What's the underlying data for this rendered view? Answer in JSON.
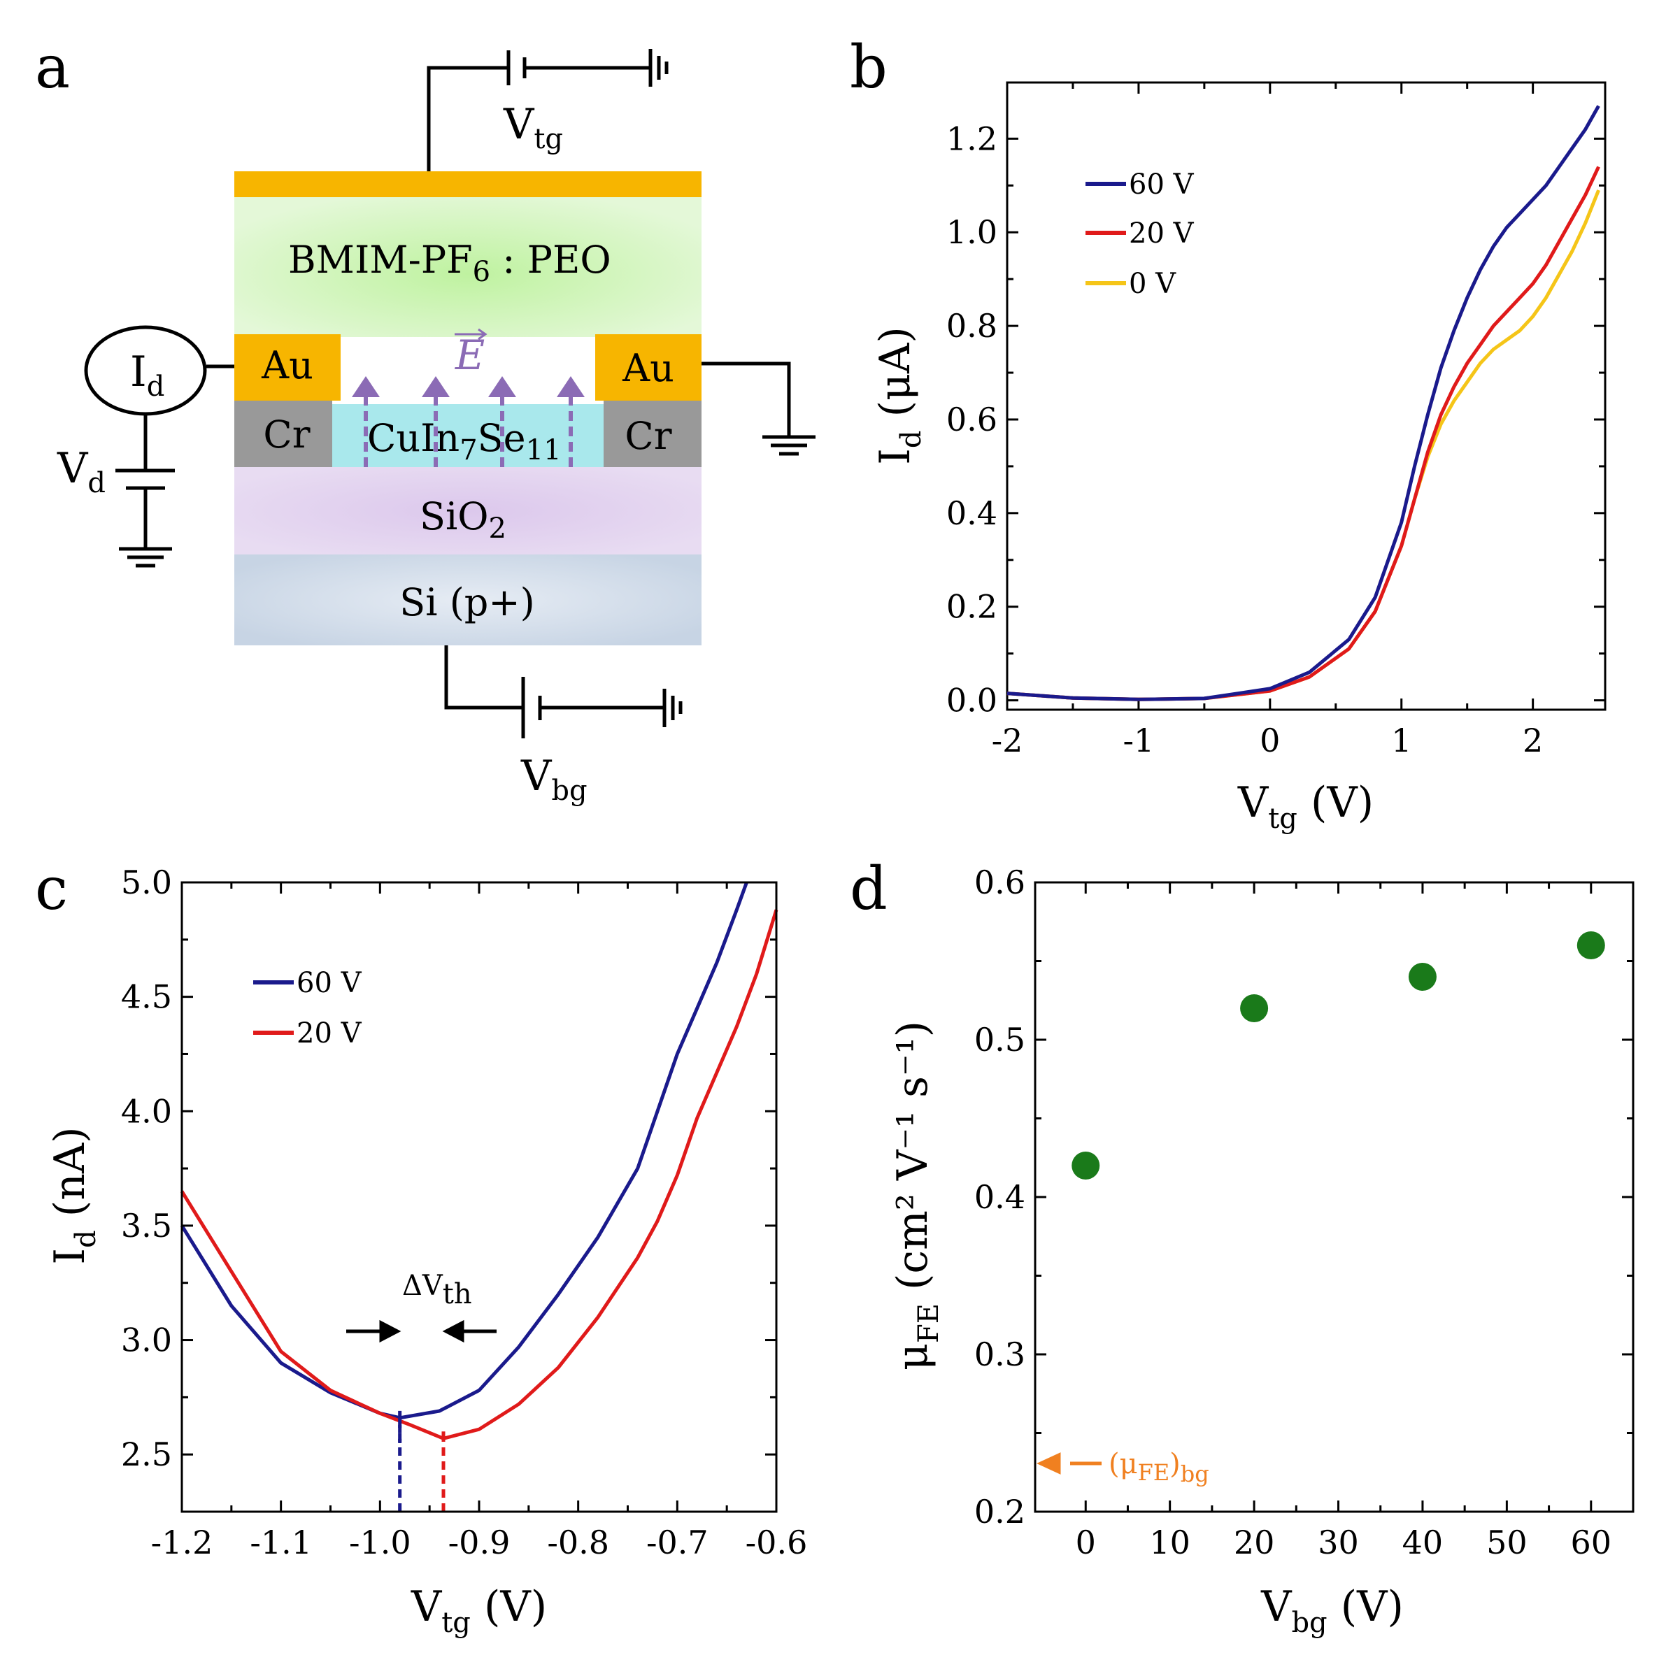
{
  "colors": {
    "blue": "#1a1a8c",
    "red": "#e01a1a",
    "yellow": "#f5c518",
    "green": "#1a7a1a",
    "orange": "#f08020",
    "gold": "#f7b500",
    "cr_gray": "#999999",
    "cuinse_cyan": "#a9e8ec",
    "arrow_purple": "#8b6bb5"
  },
  "panel_a": {
    "letter": "a",
    "vtg": {
      "main": "V",
      "sub": "tg"
    },
    "vbg": {
      "main": "V",
      "sub": "bg"
    },
    "vd": {
      "main": "V",
      "sub": "d"
    },
    "id": {
      "main": "I",
      "sub": "d"
    },
    "electrolyte": {
      "pre": "BMIM-PF",
      "sub": "6",
      "post": " : PEO"
    },
    "au_left": "Au",
    "au_right": "Au",
    "cr_left": "Cr",
    "cr_right": "Cr",
    "channel": {
      "p1": "CuIn",
      "s1": "7",
      "p2": "Se",
      "s2": "11"
    },
    "sio2": {
      "pre": "SiO",
      "sub": "2"
    },
    "si": "Si (p+)",
    "efield": "E"
  },
  "chart_data": [
    {
      "panel": "b",
      "type": "line",
      "xlabel": {
        "main": "V",
        "sub": "tg",
        "unit": " (V)"
      },
      "ylabel": {
        "main": "I",
        "sub": "d",
        "unit": " (μA)"
      },
      "xlim": [
        -2.0,
        2.55
      ],
      "ylim": [
        -0.02,
        1.32
      ],
      "xticks": [
        -2,
        -1,
        0,
        1,
        2
      ],
      "xtick_labels": [
        "-2",
        "-1",
        "0",
        "1",
        "2"
      ],
      "yticks": [
        0.0,
        0.2,
        0.4,
        0.6,
        0.8,
        1.0,
        1.2
      ],
      "ytick_labels": [
        "0.0",
        "0.2",
        "0.4",
        "0.6",
        "0.8",
        "1.0",
        "1.2"
      ],
      "legend": [
        "60 V",
        "20 V",
        "0 V"
      ],
      "series": [
        {
          "name": "0 V",
          "color": "yellow",
          "x": [
            -2.0,
            -1.5,
            -1.0,
            -0.5,
            0.0,
            0.3,
            0.6,
            0.8,
            1.0,
            1.1,
            1.2,
            1.3,
            1.4,
            1.5,
            1.6,
            1.7,
            1.8,
            1.9,
            2.0,
            2.1,
            2.2,
            2.3,
            2.4,
            2.5
          ],
          "y": [
            0.015,
            0.005,
            0.002,
            0.004,
            0.02,
            0.05,
            0.11,
            0.19,
            0.33,
            0.43,
            0.52,
            0.59,
            0.64,
            0.68,
            0.72,
            0.75,
            0.77,
            0.79,
            0.82,
            0.86,
            0.91,
            0.96,
            1.02,
            1.09
          ]
        },
        {
          "name": "20 V",
          "color": "red",
          "x": [
            -2.0,
            -1.5,
            -1.0,
            -0.5,
            0.0,
            0.3,
            0.6,
            0.8,
            1.0,
            1.1,
            1.2,
            1.3,
            1.4,
            1.5,
            1.6,
            1.7,
            1.8,
            1.9,
            2.0,
            2.1,
            2.2,
            2.3,
            2.4,
            2.5
          ],
          "y": [
            0.015,
            0.005,
            0.002,
            0.004,
            0.02,
            0.05,
            0.11,
            0.19,
            0.33,
            0.43,
            0.53,
            0.61,
            0.67,
            0.72,
            0.76,
            0.8,
            0.83,
            0.86,
            0.89,
            0.93,
            0.98,
            1.03,
            1.08,
            1.14
          ]
        },
        {
          "name": "60 V",
          "color": "blue",
          "x": [
            -2.0,
            -1.5,
            -1.0,
            -0.5,
            0.0,
            0.3,
            0.6,
            0.8,
            1.0,
            1.1,
            1.2,
            1.3,
            1.4,
            1.5,
            1.6,
            1.7,
            1.8,
            1.9,
            2.0,
            2.1,
            2.2,
            2.3,
            2.4,
            2.5
          ],
          "y": [
            0.015,
            0.005,
            0.002,
            0.004,
            0.025,
            0.06,
            0.13,
            0.22,
            0.38,
            0.5,
            0.61,
            0.71,
            0.79,
            0.86,
            0.92,
            0.97,
            1.01,
            1.04,
            1.07,
            1.1,
            1.14,
            1.18,
            1.22,
            1.27
          ]
        }
      ]
    },
    {
      "panel": "c",
      "type": "line",
      "xlabel": {
        "main": "V",
        "sub": "tg",
        "unit": " (V)"
      },
      "ylabel": {
        "main": "I",
        "sub": "d",
        "unit": " (nA)"
      },
      "xlim": [
        -1.2,
        -0.6
      ],
      "ylim": [
        2.25,
        5.0
      ],
      "xticks": [
        -1.2,
        -1.1,
        -1.0,
        -0.9,
        -0.8,
        -0.7,
        -0.6
      ],
      "xtick_labels": [
        "-1.2",
        "-1.1",
        "-1.0",
        "-0.9",
        "-0.8",
        "-0.7",
        "-0.6"
      ],
      "yticks": [
        2.5,
        3.0,
        3.5,
        4.0,
        4.5,
        5.0
      ],
      "ytick_labels": [
        "2.5",
        "3.0",
        "3.5",
        "4.0",
        "4.5",
        "5.0"
      ],
      "legend": [
        "60 V",
        "20 V"
      ],
      "annotation": {
        "main": "ΔV",
        "sub": "th"
      },
      "vlines": [
        {
          "x": -0.98,
          "color": "blue"
        },
        {
          "x": -0.936,
          "color": "red"
        }
      ],
      "series": [
        {
          "name": "60 V",
          "color": "blue",
          "x": [
            -1.2,
            -1.15,
            -1.1,
            -1.05,
            -1.0,
            -0.98,
            -0.94,
            -0.9,
            -0.86,
            -0.82,
            -0.78,
            -0.74,
            -0.72,
            -0.7,
            -0.68,
            -0.66,
            -0.64,
            -0.63
          ],
          "y": [
            3.5,
            3.15,
            2.9,
            2.77,
            2.68,
            2.66,
            2.69,
            2.78,
            2.97,
            3.2,
            3.45,
            3.75,
            4.0,
            4.25,
            4.45,
            4.65,
            4.88,
            5.0
          ]
        },
        {
          "name": "20 V",
          "color": "red",
          "x": [
            -1.2,
            -1.15,
            -1.1,
            -1.05,
            -1.0,
            -0.97,
            -0.936,
            -0.9,
            -0.86,
            -0.82,
            -0.78,
            -0.74,
            -0.72,
            -0.7,
            -0.68,
            -0.66,
            -0.64,
            -0.62,
            -0.6
          ],
          "y": [
            3.65,
            3.3,
            2.95,
            2.78,
            2.68,
            2.63,
            2.57,
            2.61,
            2.72,
            2.88,
            3.1,
            3.36,
            3.52,
            3.72,
            3.97,
            4.17,
            4.37,
            4.6,
            4.88
          ]
        }
      ]
    },
    {
      "panel": "d",
      "type": "scatter",
      "xlabel": {
        "main": "V",
        "sub": "bg",
        "unit": " (V)"
      },
      "ylabel": {
        "main": "μ",
        "sub": "FE",
        "unit": " (cm² V⁻¹ s⁻¹)"
      },
      "xlim": [
        -6,
        65
      ],
      "ylim": [
        0.2,
        0.6
      ],
      "xticks": [
        0,
        10,
        20,
        30,
        40,
        50,
        60
      ],
      "xtick_labels": [
        "0",
        "10",
        "20",
        "30",
        "40",
        "50",
        "60"
      ],
      "yticks": [
        0.2,
        0.3,
        0.4,
        0.5,
        0.6
      ],
      "ytick_labels": [
        "0.2",
        "0.3",
        "0.4",
        "0.5",
        "0.6"
      ],
      "annotation": {
        "pre": "(μ",
        "sub1": "FE",
        "mid": ")",
        "sub2": "bg",
        "value": 0.23
      },
      "points": {
        "x": [
          0,
          20,
          40,
          60
        ],
        "y": [
          0.42,
          0.52,
          0.54,
          0.56
        ]
      }
    }
  ]
}
